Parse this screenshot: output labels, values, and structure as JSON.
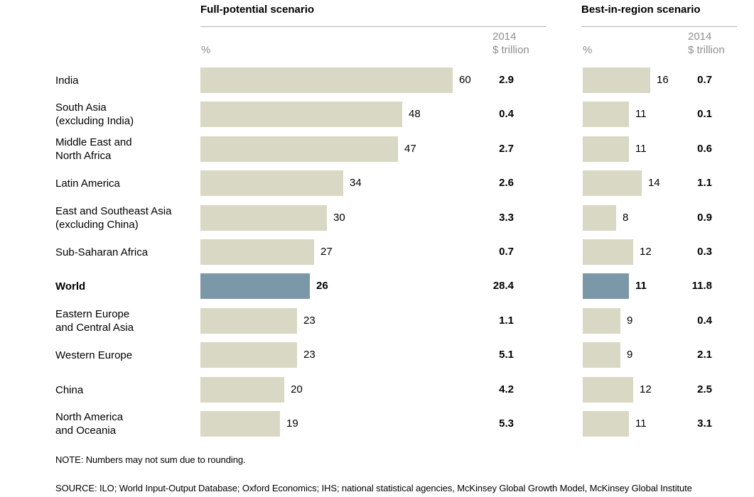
{
  "note": "NOTE: Numbers may not sum due to rounding.",
  "source": "SOURCE:  ILO; World Input-Output Database; Oxford Economics; IHS; national statistical agencies, McKinsey Global Growth Model, McKinsey Global Institute",
  "colors": {
    "bar_beige": "#d9d8c4",
    "bar_highlight_blue": "#7b98a8",
    "muted_header_text": "#8e8e8e",
    "rule_gray": "#b3b3b3"
  },
  "chart_data": {
    "type": "bar",
    "orientation": "horizontal",
    "sections": [
      {
        "title": "Full-potential scenario",
        "percent_header": "%",
        "usd_header": [
          "2014",
          "$ trillion"
        ]
      },
      {
        "title": "Best-in-region scenario",
        "percent_header": "%",
        "usd_header": [
          "2014",
          "$ trillion"
        ]
      }
    ],
    "categories": [
      "India",
      "South Asia (excluding India)",
      "Middle East and North Africa",
      "Latin America",
      "East and Southeast Asia (excluding China)",
      "Sub-Saharan Africa",
      "World",
      "Eastern Europe and Central Asia",
      "Western Europe",
      "China",
      "North America and Oceania"
    ],
    "category_label_lines": [
      [
        "India"
      ],
      [
        "South Asia",
        "(excluding India)"
      ],
      [
        "Middle East and",
        "North Africa"
      ],
      [
        "Latin America"
      ],
      [
        "East and Southeast Asia",
        "(excluding China)"
      ],
      [
        "Sub-Saharan Africa"
      ],
      [
        "World"
      ],
      [
        "Eastern Europe",
        "and Central Asia"
      ],
      [
        "Western Europe"
      ],
      [
        "China"
      ],
      [
        "North America",
        "and Oceania"
      ]
    ],
    "series": [
      {
        "name": "Full-potential scenario",
        "unit": "%",
        "values": [
          60,
          48,
          47,
          34,
          30,
          27,
          26,
          23,
          23,
          20,
          19
        ]
      },
      {
        "name": "Full-potential scenario 2014 $ trillion",
        "unit": "2014 $ trillion",
        "values": [
          "2.9",
          "0.4",
          "2.7",
          "2.6",
          "3.3",
          "0.7",
          "28.4",
          "1.1",
          "5.1",
          "4.2",
          "5.3"
        ]
      },
      {
        "name": "Best-in-region scenario",
        "unit": "%",
        "values": [
          16,
          11,
          11,
          14,
          8,
          12,
          11,
          9,
          9,
          12,
          11
        ]
      },
      {
        "name": "Best-in-region scenario 2014 $ trillion",
        "unit": "2014 $ trillion",
        "values": [
          "0.7",
          "0.1",
          "0.6",
          "1.1",
          "0.9",
          "0.3",
          "11.8",
          "0.4",
          "2.1",
          "2.5",
          "3.1"
        ]
      }
    ],
    "highlight_category": "World",
    "legend_position": "none",
    "grid": false
  }
}
